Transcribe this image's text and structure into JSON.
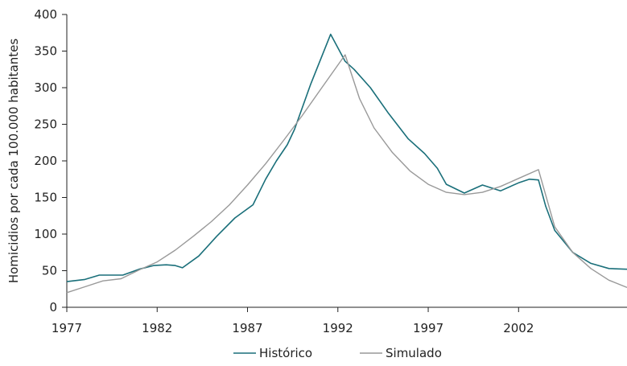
{
  "chart_data": {
    "type": "line",
    "title": "",
    "xlabel": "",
    "ylabel": "Homicidios por cada 100.000 habitantes",
    "xlim": [
      1977,
      2008
    ],
    "ylim": [
      0,
      400
    ],
    "x_ticks": [
      1977,
      1982,
      1987,
      1992,
      1997,
      2002
    ],
    "y_ticks": [
      0,
      50,
      100,
      150,
      200,
      250,
      300,
      350,
      400
    ],
    "grid": false,
    "legend_position": "bottom-center",
    "series": [
      {
        "name": "Histórico",
        "color": "#1a6f7a",
        "points": [
          [
            1977,
            35
          ],
          [
            1978,
            38
          ],
          [
            1978.8,
            44
          ],
          [
            1979.4,
            44
          ],
          [
            1980.1,
            44
          ],
          [
            1981,
            52
          ],
          [
            1981.8,
            57
          ],
          [
            1982.5,
            58
          ],
          [
            1983,
            57
          ],
          [
            1983.4,
            54
          ],
          [
            1984.3,
            70
          ],
          [
            1985.3,
            97
          ],
          [
            1986.3,
            122
          ],
          [
            1987.3,
            140
          ],
          [
            1988,
            175
          ],
          [
            1988.6,
            200
          ],
          [
            1989.2,
            222
          ],
          [
            1989.6,
            243
          ],
          [
            1990.5,
            305
          ],
          [
            1991.6,
            373
          ],
          [
            1992.4,
            336
          ],
          [
            1992.9,
            325
          ],
          [
            1993.8,
            300
          ],
          [
            1994.8,
            265
          ],
          [
            1995.9,
            230
          ],
          [
            1996.8,
            210
          ],
          [
            1997.5,
            190
          ],
          [
            1998,
            168
          ],
          [
            1999,
            156
          ],
          [
            2000,
            167
          ],
          [
            2001,
            159
          ],
          [
            2002,
            170
          ],
          [
            2002.6,
            175
          ],
          [
            2003.1,
            174
          ],
          [
            2003.5,
            138
          ],
          [
            2004,
            105
          ],
          [
            2005,
            75
          ],
          [
            2006,
            60
          ],
          [
            2007,
            53
          ],
          [
            2008,
            52
          ]
        ]
      },
      {
        "name": "Simulado",
        "color": "#999999",
        "points": [
          [
            1977,
            20
          ],
          [
            1978,
            28
          ],
          [
            1979,
            36
          ],
          [
            1980,
            39
          ],
          [
            1981,
            51
          ],
          [
            1982,
            62
          ],
          [
            1983,
            78
          ],
          [
            1984,
            97
          ],
          [
            1985,
            117
          ],
          [
            1986,
            140
          ],
          [
            1987,
            167
          ],
          [
            1988,
            196
          ],
          [
            1989,
            228
          ],
          [
            1990,
            261
          ],
          [
            1991,
            296
          ],
          [
            1992.4,
            345
          ],
          [
            1993.2,
            285
          ],
          [
            1994,
            245
          ],
          [
            1995,
            212
          ],
          [
            1996,
            186
          ],
          [
            1997,
            168
          ],
          [
            1998,
            157
          ],
          [
            1999,
            154
          ],
          [
            2000,
            157
          ],
          [
            2001,
            165
          ],
          [
            2002,
            176
          ],
          [
            2003.1,
            188
          ],
          [
            2004,
            110
          ],
          [
            2005,
            75
          ],
          [
            2006,
            53
          ],
          [
            2007,
            37
          ],
          [
            2008,
            27
          ]
        ]
      }
    ]
  }
}
